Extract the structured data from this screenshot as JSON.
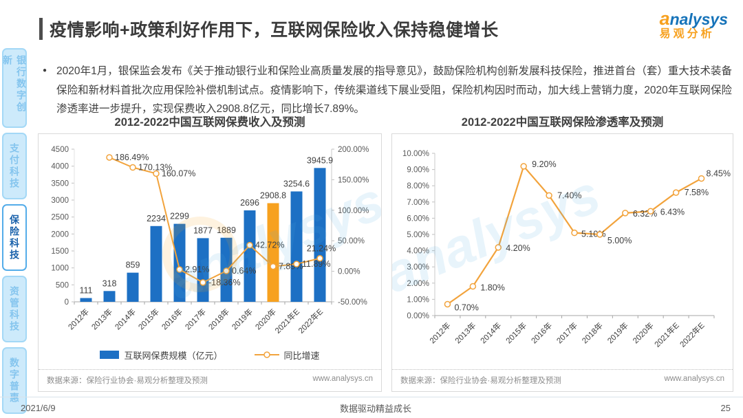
{
  "header": {
    "title": "疫情影响+政策利好作用下，互联网保险收入保持稳健增长",
    "logo_a": "a",
    "logo_rest": "nalysys",
    "logo_cn": "易观分析"
  },
  "summary": {
    "text": "2020年1月，银保监会发布《关于推动银行业和保险业高质量发展的指导意见》，鼓励保险机构创新发展科技保险，推进首台（套）重大技术装备保险和新材料首批次应用保险补偿机制试点。疫情影响下，传统渠道线下展业受阻，保险机构因时而动，加大线上营销力度，2020年互联网保险渗透率进一步提升，实现保费收入2908.8亿元，同比增长7.89%。"
  },
  "sidebar": {
    "items": [
      {
        "label": "银行数字创新",
        "active": false
      },
      {
        "label": "支付科技",
        "active": false
      },
      {
        "label": "保险科技",
        "active": true
      },
      {
        "label": "资管科技",
        "active": false
      },
      {
        "label": "数字普惠",
        "active": false
      }
    ]
  },
  "charts": {
    "source_label": "数据来源：保险行业协会·易观分析整理及预测",
    "website": "www.analysys.cn"
  },
  "chart_data": [
    {
      "type": "bar",
      "title": "2012-2022中国互联网保费收入及预测",
      "categories": [
        "2012年",
        "2013年",
        "2014年",
        "2015年",
        "2016年",
        "2017年",
        "2018年",
        "2019年",
        "2020年",
        "2021年E",
        "2022年E"
      ],
      "series": [
        {
          "name": "互联网保费规模（亿元）",
          "type": "bar",
          "values": [
            111,
            318,
            859,
            2234,
            2299,
            1877,
            1889,
            2696,
            2908.8,
            3254.6,
            3945.9
          ],
          "labels": [
            "111",
            "318",
            "859",
            "2234",
            "2299",
            "1877",
            "1889",
            "2696",
            "2908.8",
            "3254.6",
            "3945.9"
          ],
          "color": "#1d70c4",
          "highlight_index": 8,
          "highlight_color": "#f7a11f"
        },
        {
          "name": "同比增速",
          "type": "line",
          "axis": "secondary",
          "values": [
            null,
            186.49,
            170.13,
            160.07,
            2.91,
            -18.36,
            0.64,
            42.72,
            7.89,
            11.89,
            21.24
          ],
          "labels": [
            null,
            "186.49%",
            "170.13%",
            "160.07%",
            "2.91%",
            "-18.36%",
            "0.64%",
            "42.72%",
            "7.89%",
            "11.89%",
            "21.24%"
          ],
          "color": "#f2a33c"
        }
      ],
      "y_left": {
        "min": 0,
        "max": 4500,
        "tick_labels": [
          "4500",
          "4000",
          "3500",
          "3000",
          "2500",
          "2000",
          "1500",
          "1000",
          "500",
          "0"
        ]
      },
      "y_right": {
        "min": -50,
        "max": 200,
        "tick_labels": [
          "200.00%",
          "150.00%",
          "100.00%",
          "50.00%",
          "0.00%",
          "-50.00%"
        ]
      },
      "legend_position": "bottom",
      "grid": false
    },
    {
      "type": "line",
      "title": "2012-2022中国互联网保险渗透率及预测",
      "categories": [
        "2012年",
        "2013年",
        "2014年",
        "2015年",
        "2016年",
        "2017年",
        "2018年",
        "2019年",
        "2020年",
        "2021年E",
        "2022年E"
      ],
      "series": [
        {
          "name": "互联网保险渗透率",
          "type": "line",
          "values": [
            0.7,
            1.8,
            4.2,
            9.2,
            7.4,
            5.1,
            5.0,
            6.32,
            6.43,
            7.58,
            8.45
          ],
          "labels": [
            "0.70%",
            "1.80%",
            "4.20%",
            "9.20%",
            "7.40%",
            "5.10%",
            "5.00%",
            "6.32%",
            "6.43%",
            "7.58%",
            "8.45%"
          ],
          "color": "#f2a33c"
        }
      ],
      "y_left": {
        "min": 0,
        "max": 10,
        "tick_labels": [
          "10.00%",
          "9.00%",
          "8.00%",
          "7.00%",
          "6.00%",
          "5.00%",
          "4.00%",
          "3.00%",
          "2.00%",
          "1.00%",
          "0.00%"
        ]
      },
      "grid": false
    }
  ],
  "footer": {
    "date": "2021/6/9",
    "slogan": "数据驱动精益成长",
    "page": "25"
  }
}
